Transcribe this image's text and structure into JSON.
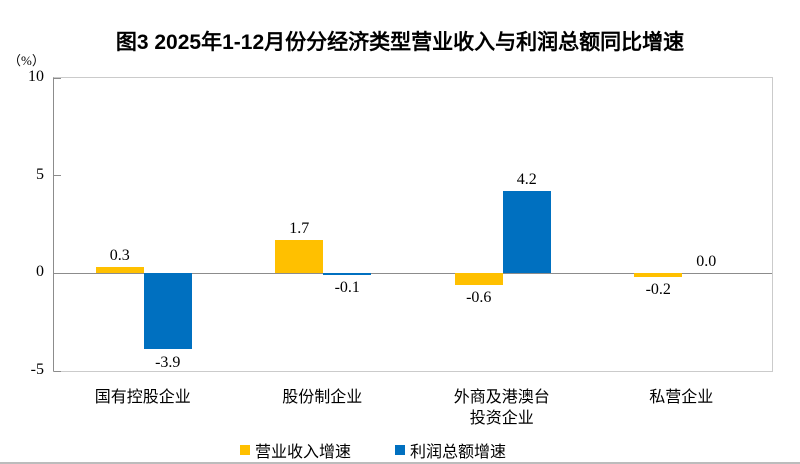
{
  "figure": {
    "title": "图3 2025年1-12月份分经济类型营业收入与利润总额同比增速",
    "unit_label": "（%）"
  },
  "chart_data": {
    "type": "bar",
    "title": "图3 2025年1-12月份分经济类型营业收入与利润总额同比增速",
    "categories": [
      "国有控股企业",
      "股份制企业",
      "外商及港澳台\n投资企业",
      "私营企业"
    ],
    "series": [
      {
        "name": "营业收入增速",
        "color": "#FFC000",
        "values": [
          0.3,
          1.7,
          -0.6,
          -0.2
        ]
      },
      {
        "name": "利润总额增速",
        "color": "#0070C0",
        "values": [
          -3.9,
          -0.1,
          4.2,
          0.0
        ]
      }
    ],
    "ylabel": "（%）",
    "ylim": [
      -5,
      10
    ],
    "yticks": [
      10,
      5,
      0,
      -5
    ],
    "grid": false,
    "value_labels": true,
    "legend_position": "bottom",
    "colors": {
      "axis_line": "#8c8c8c",
      "plot_border": "#cbcbcb",
      "series1": "#FFC000",
      "series2": "#0070C0"
    }
  }
}
